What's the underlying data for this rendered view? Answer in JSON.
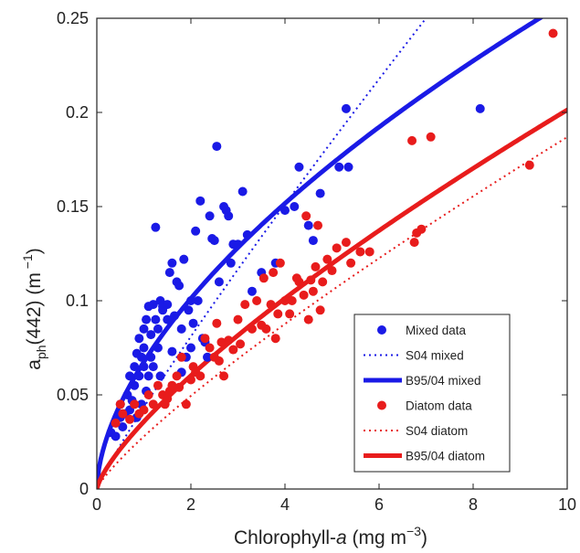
{
  "chart_data": {
    "type": "scatter",
    "xlabel": {
      "pre": "Chlorophyll-",
      "italic": "a",
      "unit": " (mg m",
      "exp": "−3",
      "close": ")"
    },
    "ylabel": {
      "pre": "a",
      "sub": "ph",
      "mid": "(442) (m",
      "exp": " −1",
      "close": ")"
    },
    "xlim": [
      0,
      10
    ],
    "ylim": [
      0,
      0.25
    ],
    "x_ticks": [
      "0",
      "2",
      "4",
      "6",
      "8",
      "10"
    ],
    "y_ticks": [
      "0",
      "0.05",
      "0.1",
      "0.15",
      "0.2",
      "0.25"
    ],
    "grid": false,
    "legend_position": "bottom-right",
    "colors": {
      "mixed": "#1a1ae6",
      "diatom": "#e81c1c",
      "axis": "#222222"
    },
    "series": [
      {
        "name": "Mixed data",
        "kind": "points",
        "color": "#1a1ae6",
        "points": [
          [
            0.3,
            0.03
          ],
          [
            0.4,
            0.028
          ],
          [
            0.5,
            0.038
          ],
          [
            0.5,
            0.045
          ],
          [
            0.55,
            0.033
          ],
          [
            0.6,
            0.04
          ],
          [
            0.65,
            0.05
          ],
          [
            0.7,
            0.042
          ],
          [
            0.7,
            0.06
          ],
          [
            0.75,
            0.047
          ],
          [
            0.8,
            0.065
          ],
          [
            0.8,
            0.055
          ],
          [
            0.85,
            0.072
          ],
          [
            0.85,
            0.038
          ],
          [
            0.9,
            0.06
          ],
          [
            0.9,
            0.08
          ],
          [
            0.95,
            0.045
          ],
          [
            0.95,
            0.07
          ],
          [
            1.0,
            0.085
          ],
          [
            1.0,
            0.065
          ],
          [
            1.0,
            0.075
          ],
          [
            1.05,
            0.052
          ],
          [
            1.05,
            0.09
          ],
          [
            1.1,
            0.06
          ],
          [
            1.1,
            0.097
          ],
          [
            1.15,
            0.07
          ],
          [
            1.15,
            0.082
          ],
          [
            1.2,
            0.065
          ],
          [
            1.2,
            0.098
          ],
          [
            1.25,
            0.139
          ],
          [
            1.25,
            0.09
          ],
          [
            1.3,
            0.075
          ],
          [
            1.3,
            0.085
          ],
          [
            1.35,
            0.1
          ],
          [
            1.35,
            0.06
          ],
          [
            1.4,
            0.095
          ],
          [
            1.4,
            0.097
          ],
          [
            1.5,
            0.09
          ],
          [
            1.5,
            0.098
          ],
          [
            1.55,
            0.115
          ],
          [
            1.6,
            0.12
          ],
          [
            1.6,
            0.073
          ],
          [
            1.65,
            0.092
          ],
          [
            1.7,
            0.11
          ],
          [
            1.75,
            0.108
          ],
          [
            1.8,
            0.085
          ],
          [
            1.8,
            0.062
          ],
          [
            1.85,
            0.122
          ],
          [
            1.9,
            0.07
          ],
          [
            1.95,
            0.095
          ],
          [
            2.0,
            0.1
          ],
          [
            2.0,
            0.075
          ],
          [
            2.05,
            0.088
          ],
          [
            2.1,
            0.137
          ],
          [
            2.15,
            0.1
          ],
          [
            2.2,
            0.153
          ],
          [
            2.25,
            0.08
          ],
          [
            2.3,
            0.078
          ],
          [
            2.35,
            0.07
          ],
          [
            2.4,
            0.145
          ],
          [
            2.45,
            0.133
          ],
          [
            2.5,
            0.132
          ],
          [
            2.55,
            0.182
          ],
          [
            2.6,
            0.11
          ],
          [
            2.7,
            0.15
          ],
          [
            2.75,
            0.148
          ],
          [
            2.8,
            0.145
          ],
          [
            2.85,
            0.12
          ],
          [
            2.9,
            0.13
          ],
          [
            3.0,
            0.13
          ],
          [
            3.1,
            0.158
          ],
          [
            3.2,
            0.135
          ],
          [
            3.3,
            0.105
          ],
          [
            3.5,
            0.115
          ],
          [
            3.8,
            0.12
          ],
          [
            4.0,
            0.148
          ],
          [
            4.2,
            0.15
          ],
          [
            4.3,
            0.171
          ],
          [
            4.5,
            0.14
          ],
          [
            4.6,
            0.132
          ],
          [
            4.75,
            0.157
          ],
          [
            5.15,
            0.171
          ],
          [
            5.3,
            0.202
          ],
          [
            5.35,
            0.171
          ],
          [
            8.15,
            0.202
          ]
        ]
      },
      {
        "name": "S04 mixed",
        "kind": "curve",
        "style": "dotted",
        "color": "#1a1ae6",
        "equation": {
          "A": 0.0434,
          "B": 0.9
        }
      },
      {
        "name": "B95/04 mixed",
        "kind": "curve",
        "style": "solid",
        "color": "#1a1ae6",
        "equation": {
          "A": 0.0675,
          "B": 0.584
        }
      },
      {
        "name": "Diatom data",
        "kind": "points",
        "color": "#e81c1c",
        "points": [
          [
            0.4,
            0.035
          ],
          [
            0.5,
            0.045
          ],
          [
            0.55,
            0.04
          ],
          [
            0.7,
            0.037
          ],
          [
            0.8,
            0.045
          ],
          [
            0.9,
            0.04
          ],
          [
            1.0,
            0.042
          ],
          [
            1.1,
            0.05
          ],
          [
            1.2,
            0.045
          ],
          [
            1.3,
            0.055
          ],
          [
            1.4,
            0.05
          ],
          [
            1.45,
            0.045
          ],
          [
            1.5,
            0.048
          ],
          [
            1.55,
            0.052
          ],
          [
            1.6,
            0.055
          ],
          [
            1.7,
            0.06
          ],
          [
            1.75,
            0.054
          ],
          [
            1.8,
            0.07
          ],
          [
            1.9,
            0.045
          ],
          [
            2.0,
            0.058
          ],
          [
            2.05,
            0.065
          ],
          [
            2.1,
            0.062
          ],
          [
            2.2,
            0.06
          ],
          [
            2.3,
            0.08
          ],
          [
            2.4,
            0.075
          ],
          [
            2.5,
            0.07
          ],
          [
            2.55,
            0.088
          ],
          [
            2.6,
            0.068
          ],
          [
            2.65,
            0.078
          ],
          [
            2.7,
            0.06
          ],
          [
            2.8,
            0.079
          ],
          [
            2.9,
            0.074
          ],
          [
            3.0,
            0.09
          ],
          [
            3.05,
            0.077
          ],
          [
            3.15,
            0.098
          ],
          [
            3.3,
            0.085
          ],
          [
            3.4,
            0.1
          ],
          [
            3.5,
            0.087
          ],
          [
            3.55,
            0.112
          ],
          [
            3.6,
            0.085
          ],
          [
            3.7,
            0.098
          ],
          [
            3.75,
            0.115
          ],
          [
            3.8,
            0.08
          ],
          [
            3.85,
            0.093
          ],
          [
            3.9,
            0.12
          ],
          [
            4.0,
            0.1
          ],
          [
            4.1,
            0.093
          ],
          [
            4.15,
            0.1
          ],
          [
            4.25,
            0.112
          ],
          [
            4.3,
            0.11
          ],
          [
            4.4,
            0.103
          ],
          [
            4.45,
            0.145
          ],
          [
            4.5,
            0.09
          ],
          [
            4.55,
            0.111
          ],
          [
            4.6,
            0.105
          ],
          [
            4.65,
            0.118
          ],
          [
            4.7,
            0.14
          ],
          [
            4.75,
            0.095
          ],
          [
            4.8,
            0.11
          ],
          [
            4.9,
            0.122
          ],
          [
            5.0,
            0.116
          ],
          [
            5.1,
            0.128
          ],
          [
            5.3,
            0.131
          ],
          [
            5.4,
            0.12
          ],
          [
            5.6,
            0.126
          ],
          [
            5.8,
            0.126
          ],
          [
            6.7,
            0.185
          ],
          [
            6.75,
            0.131
          ],
          [
            6.8,
            0.136
          ],
          [
            6.9,
            0.138
          ],
          [
            7.1,
            0.187
          ],
          [
            9.2,
            0.172
          ],
          [
            9.7,
            0.242
          ]
        ]
      },
      {
        "name": "S04 diatom",
        "kind": "curve",
        "style": "dotted",
        "color": "#e81c1c",
        "equation": {
          "A": 0.0279,
          "B": 0.826
        }
      },
      {
        "name": "B95/04 diatom",
        "kind": "curve",
        "style": "solid",
        "color": "#e81c1c",
        "equation": {
          "A": 0.0358,
          "B": 0.75
        }
      }
    ]
  }
}
